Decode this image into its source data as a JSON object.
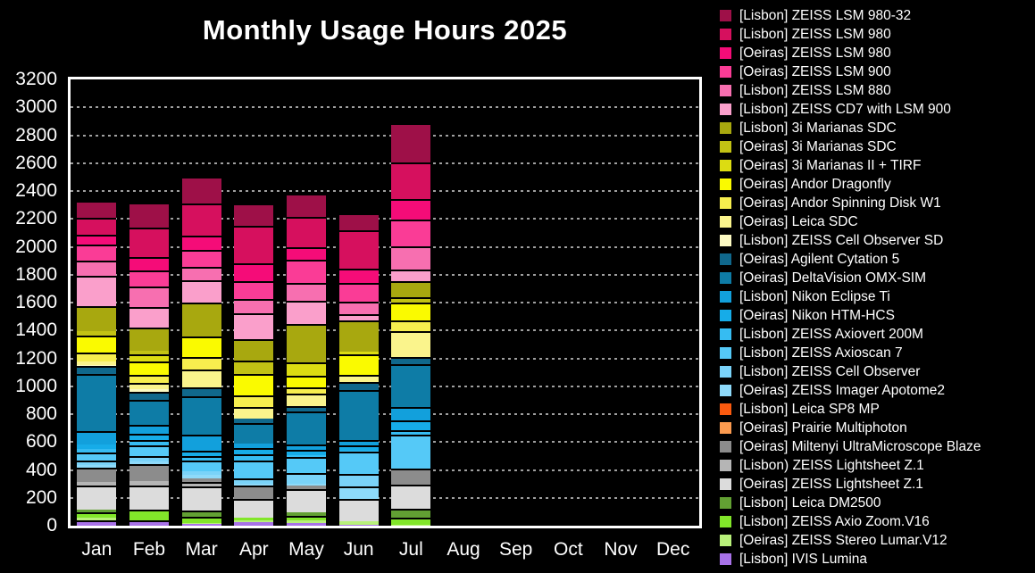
{
  "title": "Monthly Usage Hours 2025",
  "colors": {
    "background": "#000000",
    "text": "#ffffff",
    "plot_border": "#ffffff",
    "gridline": "#a0a0a0",
    "segment_divider": "#000000"
  },
  "chart_data": {
    "type": "bar",
    "stacked": true,
    "title": "Monthly Usage Hours 2025",
    "categories": [
      "Jan",
      "Feb",
      "Mar",
      "Apr",
      "May",
      "Jun",
      "Jul",
      "Aug",
      "Sep",
      "Oct",
      "Nov",
      "Dec"
    ],
    "ylim": [
      0,
      3200
    ],
    "ytick_step": 200,
    "y_tick_labels": [
      "0",
      "200",
      "400",
      "600",
      "800",
      "1000",
      "1200",
      "1400",
      "1600",
      "1800",
      "2000",
      "2200",
      "2400",
      "2600",
      "2800",
      "3000",
      "3200"
    ],
    "grid": "horizontal-dotted",
    "legend_position": "right",
    "series": [
      {
        "name": "[Lisbon] ZEISS LSM 980-32",
        "color": "#9e1048",
        "values": [
          120,
          177,
          190,
          155,
          170,
          118,
          280,
          0,
          0,
          0,
          0,
          0
        ]
      },
      {
        "name": "[Lisbon] ZEISS LSM 980",
        "color": "#d6105e",
        "values": [
          121,
          211,
          228,
          270,
          218,
          275,
          268,
          0,
          0,
          0,
          0,
          0
        ]
      },
      {
        "name": "[Oeiras] ZEISS LSM 980",
        "color": "#f50c78",
        "values": [
          74,
          97,
          108,
          130,
          85,
          105,
          142,
          0,
          0,
          0,
          0,
          0
        ]
      },
      {
        "name": "[Oeiras] ZEISS LSM 900",
        "color": "#fa3c96",
        "values": [
          113,
          115,
          122,
          126,
          165,
          135,
          192,
          0,
          0,
          0,
          0,
          0
        ]
      },
      {
        "name": "[Lisbon] ZEISS LSM 880",
        "color": "#f76fb0",
        "values": [
          111,
          150,
          95,
          105,
          128,
          85,
          168,
          0,
          0,
          0,
          0,
          0
        ]
      },
      {
        "name": "[Lisbon] ZEISS CD7 with LSM 900",
        "color": "#fa9fcb",
        "values": [
          215,
          145,
          158,
          185,
          169,
          45,
          83,
          0,
          0,
          0,
          0,
          0
        ]
      },
      {
        "name": "[Lisbon] 3i Marianas SDC",
        "color": "#a8a80f",
        "values": [
          180,
          166,
          242,
          156,
          276,
          229,
          115,
          0,
          0,
          0,
          0,
          0
        ]
      },
      {
        "name": "[Oeiras] 3i Marianas SDC",
        "color": "#c2c214",
        "values": [
          30,
          27,
          0,
          95,
          0,
          0,
          40,
          0,
          0,
          0,
          0,
          0
        ]
      },
      {
        "name": "[Oeiras] 3i Marianas II + TIRF",
        "color": "#dcdc12",
        "values": [
          0,
          51,
          0,
          0,
          96,
          20,
          0,
          0,
          0,
          0,
          0,
          0
        ]
      },
      {
        "name": "[Oeiras] Andor Dragonfly",
        "color": "#fafa00",
        "values": [
          125,
          95,
          150,
          150,
          80,
          144,
          128,
          0,
          0,
          0,
          0,
          0
        ]
      },
      {
        "name": "[Oeiras] Andor Spinning Disk W1",
        "color": "#f7ee4e",
        "values": [
          62,
          60,
          90,
          85,
          45,
          0,
          75,
          0,
          0,
          0,
          0,
          0
        ]
      },
      {
        "name": "[Oeiras] Leica SDC",
        "color": "#faf48c",
        "values": [
          25,
          42,
          128,
          84,
          90,
          50,
          190,
          0,
          0,
          0,
          0,
          0
        ]
      },
      {
        "name": "[Lisbon] ZEISS Cell Observer SD",
        "color": "#fcfac2",
        "values": [
          8,
          17,
          0,
          0,
          0,
          0,
          0,
          0,
          0,
          0,
          0,
          0
        ]
      },
      {
        "name": "[Oeiras] Agilent Cytation 5",
        "color": "#10688c",
        "values": [
          60,
          60,
          60,
          30,
          40,
          60,
          50,
          0,
          0,
          0,
          0,
          0
        ]
      },
      {
        "name": "[Oeiras] DeltaVision OMX-SIM",
        "color": "#0e7ca6",
        "values": [
          410,
          180,
          280,
          151,
          240,
          360,
          305,
          0,
          0,
          0,
          0,
          0
        ]
      },
      {
        "name": "[Lisbon] Nikon Eclipse Ti",
        "color": "#12a0dc",
        "values": [
          96,
          60,
          111,
          30,
          35,
          35,
          95,
          0,
          0,
          0,
          0,
          0
        ]
      },
      {
        "name": "[Oeiras] Nikon HTM-HCS",
        "color": "#16ace8",
        "values": [
          30,
          45,
          40,
          45,
          40,
          38,
          75,
          0,
          0,
          0,
          0,
          0
        ]
      },
      {
        "name": "[Lisbon] ZEISS Axiovert 200M",
        "color": "#36bcf2",
        "values": [
          23,
          40,
          32,
          45,
          14,
          10,
          32,
          0,
          0,
          0,
          0,
          0
        ]
      },
      {
        "name": "[Lisbon] ZEISS Axioscan 7",
        "color": "#55c9f7",
        "values": [
          60,
          75,
          75,
          125,
          115,
          160,
          240,
          0,
          0,
          0,
          0,
          0
        ]
      },
      {
        "name": "[Lisbon] ZEISS Cell Observer",
        "color": "#7ad3f9",
        "values": [
          33,
          40,
          30,
          42,
          72,
          88,
          0,
          0,
          0,
          0,
          0,
          0
        ]
      },
      {
        "name": "[Oeiras] ZEISS Imager Apotome2",
        "color": "#8edafa",
        "values": [
          21,
          23,
          20,
          10,
          15,
          88,
          0,
          0,
          0,
          0,
          0,
          0
        ]
      },
      {
        "name": "[Lisbon] Leica SP8 MP",
        "color": "#fa5a0f",
        "values": [
          0,
          0,
          0,
          0,
          0,
          0,
          0,
          0,
          0,
          0,
          0,
          0
        ]
      },
      {
        "name": "[Oeiras] Prairie Multiphoton",
        "color": "#fb9a4f",
        "values": [
          0,
          0,
          0,
          0,
          0,
          0,
          0,
          0,
          0,
          0,
          0,
          0
        ]
      },
      {
        "name": "[Oeiras] Miltenyi UltraMicroscope Blaze",
        "color": "#8c8c8c",
        "values": [
          98,
          117,
          30,
          96,
          25,
          0,
          115,
          0,
          0,
          0,
          0,
          0
        ]
      },
      {
        "name": "[Lisbon) ZEISS Lightsheet Z.1",
        "color": "#b5b5b5",
        "values": [
          26,
          31,
          32,
          0,
          0,
          0,
          0,
          0,
          0,
          0,
          0,
          0
        ]
      },
      {
        "name": "[Oeiras] ZEISS Lightsheet Z.1",
        "color": "#dcdcdc",
        "values": [
          175,
          175,
          172,
          138,
          166,
          160,
          176,
          0,
          0,
          0,
          0,
          0
        ]
      },
      {
        "name": "[Lisbon] Leica DM2500",
        "color": "#62a033",
        "values": [
          15,
          0,
          46,
          0,
          25,
          0,
          64,
          0,
          0,
          0,
          0,
          0
        ]
      },
      {
        "name": "[Lisbon] ZEISS Axio Zoom.V16",
        "color": "#82e62a",
        "values": [
          43,
          80,
          43,
          15,
          32,
          0,
          50,
          0,
          0,
          0,
          0,
          0
        ]
      },
      {
        "name": "[Oeiras] ZEISS Stereo Lumar.V12",
        "color": "#b8f07a",
        "values": [
          16,
          0,
          4,
          12,
          22,
          28,
          5,
          0,
          0,
          0,
          0,
          0
        ]
      },
      {
        "name": "[Lisbon] IVIS Lumina",
        "color": "#a872e8",
        "values": [
          40,
          36,
          15,
          28,
          19,
          5,
          0,
          0,
          0,
          0,
          0,
          0
        ]
      }
    ]
  }
}
